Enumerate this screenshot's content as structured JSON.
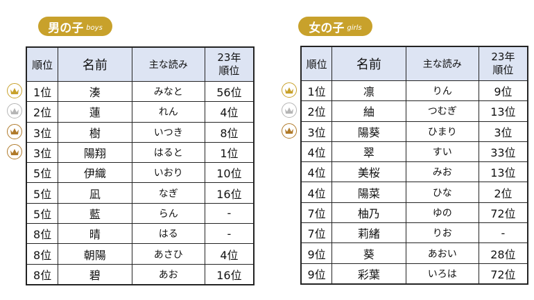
{
  "boys": {
    "badge_jp": "男の子",
    "badge_en": "boys",
    "headers": {
      "rank": "順位",
      "name": "名前",
      "reading": "主な読み",
      "prev_line1": "23年",
      "prev_line2": "順位"
    },
    "rows": [
      {
        "rank": "1位",
        "name": "湊",
        "reading": "みなと",
        "prev": "56位",
        "crown": "gold"
      },
      {
        "rank": "2位",
        "name": "蓮",
        "reading": "れん",
        "prev": "4位",
        "crown": "silver"
      },
      {
        "rank": "3位",
        "name": "樹",
        "reading": "いつき",
        "prev": "8位",
        "crown": "bronze"
      },
      {
        "rank": "3位",
        "name": "陽翔",
        "reading": "はると",
        "prev": "1位",
        "crown": "bronze"
      },
      {
        "rank": "5位",
        "name": "伊織",
        "reading": "いおり",
        "prev": "10位"
      },
      {
        "rank": "5位",
        "name": "凪",
        "reading": "なぎ",
        "prev": "16位"
      },
      {
        "rank": "5位",
        "name": "藍",
        "reading": "らん",
        "prev": "-"
      },
      {
        "rank": "8位",
        "name": "晴",
        "reading": "はる",
        "prev": "-"
      },
      {
        "rank": "8位",
        "name": "朝陽",
        "reading": "あさひ",
        "prev": "4位"
      },
      {
        "rank": "8位",
        "name": "碧",
        "reading": "あお",
        "prev": "16位"
      }
    ]
  },
  "girls": {
    "badge_jp": "女の子",
    "badge_en": "girls",
    "headers": {
      "rank": "順位",
      "name": "名前",
      "reading": "主な読み",
      "prev_line1": "23年",
      "prev_line2": "順位"
    },
    "rows": [
      {
        "rank": "1位",
        "name": "凛",
        "reading": "りん",
        "prev": "9位",
        "crown": "gold"
      },
      {
        "rank": "2位",
        "name": "紬",
        "reading": "つむぎ",
        "prev": "13位",
        "crown": "silver"
      },
      {
        "rank": "3位",
        "name": "陽葵",
        "reading": "ひまり",
        "prev": "3位",
        "crown": "bronze"
      },
      {
        "rank": "4位",
        "name": "翠",
        "reading": "すい",
        "prev": "33位"
      },
      {
        "rank": "4位",
        "name": "美桜",
        "reading": "みお",
        "prev": "13位"
      },
      {
        "rank": "4位",
        "name": "陽菜",
        "reading": "ひな",
        "prev": "2位"
      },
      {
        "rank": "7位",
        "name": "柚乃",
        "reading": "ゆの",
        "prev": "72位"
      },
      {
        "rank": "7位",
        "name": "莉緒",
        "reading": "りお",
        "prev": "-"
      },
      {
        "rank": "9位",
        "name": "葵",
        "reading": "あおい",
        "prev": "28位"
      },
      {
        "rank": "9位",
        "name": "彩葉",
        "reading": "いろは",
        "prev": "72位"
      }
    ]
  },
  "colors": {
    "badge": "#c8a12b",
    "header_bg": "#dde4f3",
    "gold": "#c8a12b",
    "silver": "#b5b5b5",
    "bronze": "#b07a2a"
  },
  "icons": {
    "crown": "crown-icon"
  }
}
